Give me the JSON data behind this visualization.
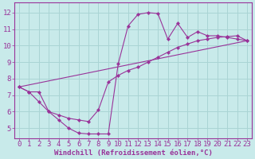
{
  "xlabel": "Windchill (Refroidissement éolien,°C)",
  "bg_color": "#c8eaea",
  "grid_color": "#aad4d4",
  "line_color": "#993399",
  "xlim": [
    -0.5,
    23.5
  ],
  "ylim": [
    4.4,
    12.6
  ],
  "xticks": [
    0,
    1,
    2,
    3,
    4,
    5,
    6,
    7,
    8,
    9,
    10,
    11,
    12,
    13,
    14,
    15,
    16,
    17,
    18,
    19,
    20,
    21,
    22,
    23
  ],
  "yticks": [
    5,
    6,
    7,
    8,
    9,
    10,
    11,
    12
  ],
  "line1_x": [
    0,
    1,
    2,
    3,
    4,
    5,
    6,
    7,
    8,
    9,
    10,
    11,
    12,
    13,
    14,
    15,
    16,
    17,
    18,
    19,
    20,
    21,
    22,
    23
  ],
  "line1_y": [
    7.5,
    7.2,
    7.2,
    6.0,
    5.5,
    5.0,
    4.7,
    4.65,
    4.65,
    4.65,
    8.9,
    11.2,
    11.9,
    12.0,
    11.95,
    10.4,
    11.35,
    10.5,
    10.85,
    10.6,
    10.6,
    10.5,
    10.4,
    10.3
  ],
  "line2_x": [
    0,
    23
  ],
  "line2_y": [
    7.5,
    10.3
  ],
  "line3_x": [
    0,
    1,
    2,
    3,
    4,
    5,
    6,
    7,
    8,
    9,
    10,
    11,
    12,
    13,
    14,
    15,
    16,
    17,
    18,
    19,
    20,
    21,
    22,
    23
  ],
  "line3_y": [
    7.5,
    7.2,
    6.6,
    6.0,
    5.8,
    5.6,
    5.5,
    5.4,
    6.1,
    7.8,
    8.2,
    8.5,
    8.7,
    9.0,
    9.3,
    9.6,
    9.9,
    10.1,
    10.3,
    10.4,
    10.5,
    10.55,
    10.6,
    10.3
  ],
  "xlabel_fontsize": 6.5,
  "tick_fontsize": 6.5,
  "marker": "D",
  "markersize": 2.2,
  "linewidth": 0.8
}
